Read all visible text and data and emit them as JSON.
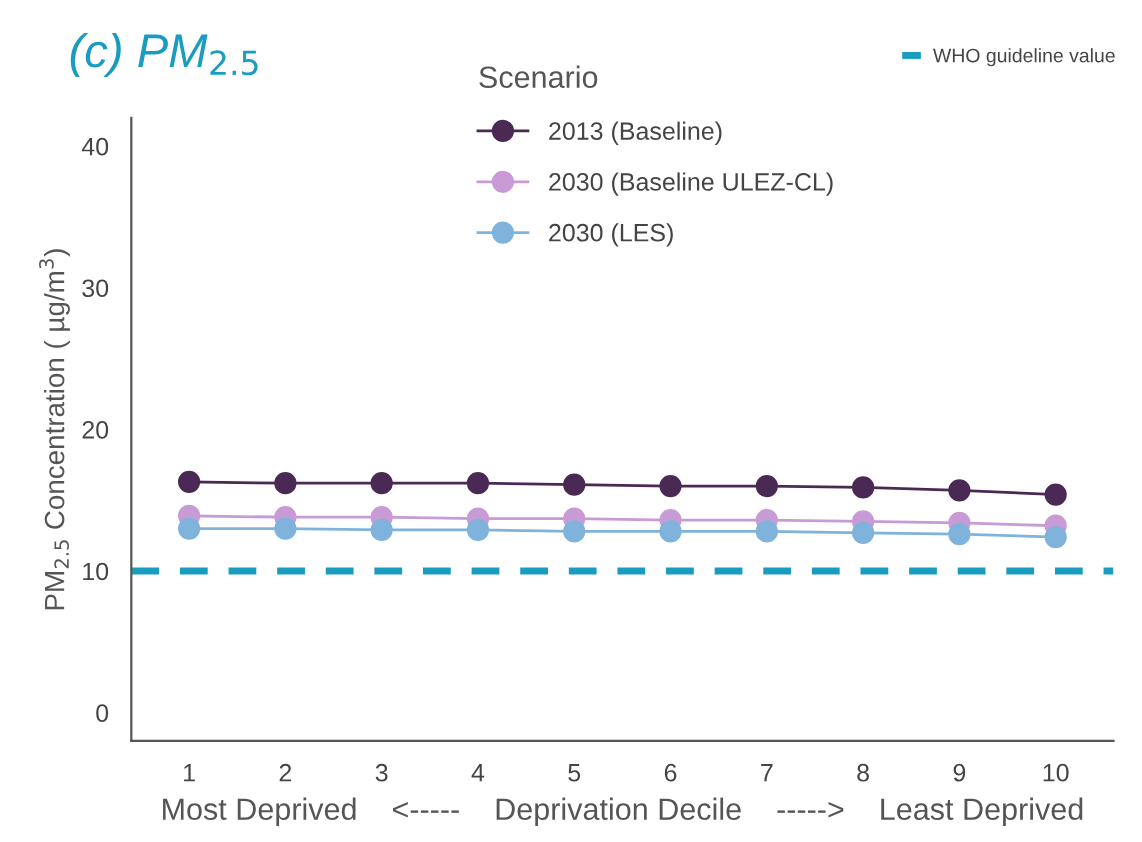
{
  "chart_data": {
    "type": "line",
    "title": "(c) PM$_{2.5}$",
    "xlabel": "Most Deprived    <-----    Deprivation Decile    ----->    Least Deprived",
    "ylabel": "PM$_{2.5}$ Concentration ( µg/m$^{3}$)",
    "legend_title": "Scenario",
    "legend": "top",
    "marker": "circle",
    "line_style": "solid",
    "grid": false,
    "categories": [
      "1",
      "2",
      "3",
      "4",
      "5",
      "6",
      "7",
      "8",
      "9",
      "10"
    ],
    "ylim": [
      -2,
      42
    ],
    "yticks": [
      0,
      10,
      20,
      30,
      40
    ],
    "series": [
      {
        "name": "2013 (Baseline)",
        "color": "#4a2a55",
        "values": [
          16.3,
          16.2,
          16.2,
          16.2,
          16.1,
          16.0,
          16.0,
          15.9,
          15.7,
          15.4
        ]
      },
      {
        "name": "2030 (Baseline ULEZ-CL)",
        "color": "#c89bd6",
        "values": [
          13.9,
          13.8,
          13.8,
          13.7,
          13.7,
          13.6,
          13.6,
          13.5,
          13.4,
          13.2
        ]
      },
      {
        "name": "2030 (LES)",
        "color": "#7fb3dc",
        "values": [
          13.0,
          13.0,
          12.9,
          12.9,
          12.8,
          12.8,
          12.8,
          12.7,
          12.6,
          12.4
        ]
      }
    ],
    "ref_lines": [
      {
        "axis": "y",
        "value": 10,
        "label": "WHO guideline value",
        "color": "#1a9cc0",
        "line_style": "dashed"
      }
    ]
  }
}
